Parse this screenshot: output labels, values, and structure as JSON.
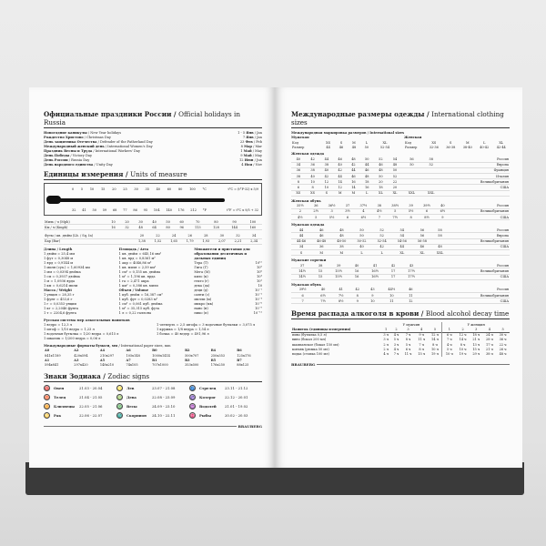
{
  "holidays": {
    "title": "Официальные праздники России",
    "title_en": "Official holidays in Russia",
    "items": [
      [
        "Новогодние каникулы",
        "New Year holidays",
        "1 - 5",
        "Янв",
        "Jan"
      ],
      [
        "Рождество Христово",
        "Christmas Day",
        "7",
        "Янв",
        "Jan"
      ],
      [
        "День защитника Отечества",
        "Defender of the Fatherland Day",
        "23",
        "Фев",
        "Feb"
      ],
      [
        "Международный женский день",
        "International Women's Day",
        "8",
        "Мар",
        "Mar"
      ],
      [
        "Праздник Весны и Труда",
        "International Workers' Day",
        "1",
        "Май",
        "May"
      ],
      [
        "День Победы",
        "Victory Day",
        "9",
        "Май",
        "May"
      ],
      [
        "День России",
        "Russia Day",
        "12",
        "Июн",
        "Jun"
      ],
      [
        "День народного единства",
        "Unity Day",
        "4",
        "Ноя",
        "Nov"
      ]
    ]
  },
  "units": {
    "title": "Единицы измерения",
    "title_en": "Units of measure",
    "celsius": [
      "0",
      "5",
      "10",
      "15",
      "20",
      "25",
      "30",
      "35",
      "40",
      "60",
      "80",
      "100"
    ],
    "fahrenheit": [
      "32",
      "41",
      "50",
      "59",
      "68",
      "77",
      "86",
      "95",
      "104",
      "140",
      "176",
      "212"
    ],
    "c_label": "°C",
    "f_label": "°F",
    "c_formula": "t°C = (t°F-32) x 5/9",
    "f_formula": "t°F = t°C x 9/5 + 32",
    "speed": [
      [
        "Миль / ч (Mph)",
        "10",
        "20",
        "30",
        "40",
        "50",
        "60",
        "70",
        "80",
        "90",
        "100"
      ],
      [
        "Км / ч (Kmph)",
        "16",
        "32",
        "48",
        "64",
        "80",
        "96",
        "113",
        "128",
        "144",
        "160"
      ]
    ],
    "pressure": [
      [
        "Футы / кв. дюйм (Lb. / Sq. In)",
        "20",
        "22",
        "24",
        "26",
        "28",
        "30",
        "32",
        "34"
      ],
      [
        "Бар (Bar)",
        "1,38",
        "1,52",
        "1,65",
        "1,79",
        "1,93",
        "2,07",
        "2,21",
        "2,34"
      ]
    ],
    "length": {
      "title": "Длина / Length",
      "items": [
        "1 дюйм = 25,4 мм",
        "1 фут = 0,3048 м",
        "1 ярд = 0,9144 м",
        "1 миля (сух.) = 1,60934 км",
        "1 мм = 0,0394 дюйма",
        "1 см = 0,3937 дюйма",
        "1 м = 1,0936 ярда",
        "1 км = 0,6214 мили"
      ]
    },
    "mass": {
      "title": "Масса / Weight",
      "items": [
        "1 унция = 28,35 г",
        "1 фунт = 453,6 г",
        "1 г = 0,0353 унции",
        "1 кг = 2,2046 фунта",
        "1 т = 2204,6 фунта"
      ]
    },
    "area": {
      "title": "Площадь / Area",
      "items": [
        "1 кв. дюйм = 645,16 мм²",
        "1 кв. ярд = 0,8361 м²",
        "1 акр = 4046,86 м²",
        "1 кв. миля = 2,59 км²",
        "1 см² = 0,155 кв. дюйма",
        "1 м² = 1,196 кв. ярда",
        "1 га = 2,471 акра",
        "1 км² = 0,386 кв. мили"
      ]
    },
    "volume": {
      "title": "Объем / Volume",
      "items": [
        "1 куб. дюйм = 16,387 см³",
        "1 куб. фут = 0,0283 м³",
        "1 см³ = 0,061 куб. дюйма",
        "1 м³ = 35,315 куб. фута",
        "1 л = 0,22 галлона"
      ]
    },
    "prefixes": {
      "title": "Множители и приставки для образования десятичных и дольных единиц",
      "items": [
        [
          "Тера (Т)",
          "10¹²"
        ],
        [
          "Гига (Г)",
          "10⁹"
        ],
        [
          "Мега (М)",
          "10⁶"
        ],
        [
          "кило (к)",
          "10³"
        ],
        [
          "гекто (г)",
          "10²"
        ],
        [
          "дека (да)",
          "10"
        ],
        [
          "деци (д)",
          "10⁻¹"
        ],
        [
          "санти (с)",
          "10⁻²"
        ],
        [
          "милли (м)",
          "10⁻³"
        ],
        [
          "микро (мк)",
          "10⁻⁶"
        ],
        [
          "нано (н)",
          "10⁻⁹"
        ],
        [
          "пико (п)",
          "10⁻¹²"
        ]
      ]
    }
  },
  "russian_alcohol": {
    "title": "Русская система мер алкогольных напитков",
    "left": [
      "1 ведро = 12,3 л",
      "1 штоф = 1/10 ведра = 1,23 л",
      "1 водочная бутылка = 1/20 ведра = 0,615 л",
      "1 шкалик = 1/200 ведра = 0,06 л"
    ],
    "right": [
      "1 четверть = 2,5 штофа = 3 водочные бутылки = 3,075 л",
      "1 кружка = 1/8 ведра = 1,54 л",
      "1 бочка = 40 ведер = 491,96 л"
    ]
  },
  "paper": {
    "title": "Международные форматы бумаги, мм",
    "title_en": "International paper sizes, mm",
    "rows": [
      [
        [
          "A0",
          "841x1189"
        ],
        [
          "A2",
          "420x594"
        ],
        [
          "A4",
          "210x297"
        ],
        [
          "A6",
          "105x148"
        ],
        [
          "B0",
          "1000x1414"
        ],
        [
          "B2",
          "500x707"
        ],
        [
          "B4",
          "250x353"
        ],
        [
          "B6",
          "125x176"
        ]
      ],
      [
        [
          "A1",
          "594x841"
        ],
        [
          "A3",
          "297x420"
        ],
        [
          "A5",
          "148x210"
        ],
        [
          "A7",
          "74x105"
        ],
        [
          "B1",
          "707x1000"
        ],
        [
          "B3",
          "353x500"
        ],
        [
          "B5",
          "176x250"
        ],
        [
          "B7",
          "88x125"
        ]
      ]
    ]
  },
  "zodiac": {
    "title": "Знаки Зодиака",
    "title_en": "Zodiac signs",
    "items": [
      [
        "Овен",
        "21.03 - 20.04",
        "♈"
      ],
      [
        "Лев",
        "23.07 - 21.08",
        "♌"
      ],
      [
        "Стрелец",
        "23.11 - 21.12",
        "♐"
      ],
      [
        "Телец",
        "21.04 - 21.05",
        "♉"
      ],
      [
        "Дева",
        "22.08 - 23.09",
        "♍"
      ],
      [
        "Козерог",
        "22.12 - 20.01",
        "♑"
      ],
      [
        "Близнецы",
        "22.05 - 21.06",
        "♊"
      ],
      [
        "Весы",
        "24.09 - 23.10",
        "♎"
      ],
      [
        "Водолей",
        "21.01 - 19.02",
        "♒"
      ],
      [
        "Рак",
        "22.06 - 22.07",
        "♋"
      ],
      [
        "Скорпион",
        "24.10 - 22.11",
        "♏"
      ],
      [
        "Рыбы",
        "20.02 - 20.03",
        "♓"
      ]
    ]
  },
  "brand": "BRAUBERG",
  "clothing": {
    "title": "Международные размеры одежды",
    "title_en": "International clothing sizes",
    "marking": "Международная маркировка размеров / International sizes",
    "men_label": "Мужская",
    "women_label": "Женская",
    "men": [
      [
        "Код",
        "XS",
        "S",
        "M",
        "L",
        "XL"
      ],
      [
        "Размер",
        "44",
        "46",
        "48",
        "50",
        "52-54"
      ]
    ],
    "women": [
      [
        "Код",
        "XS",
        "S",
        "M",
        "L",
        "XL"
      ],
      [
        "Размер",
        "32-36",
        "36-38",
        "38-40",
        "40-42",
        "42-44"
      ]
    ],
    "sections": [
      {
        "title": "Женская одежда",
        "rows": [
          [
            "40",
            "42",
            "44",
            "46",
            "48",
            "50",
            "52",
            "54",
            "56",
            "58",
            "Россия"
          ],
          [
            "34",
            "36",
            "38",
            "40",
            "42",
            "44",
            "46",
            "48",
            "50",
            "52",
            "Европа"
          ],
          [
            "36",
            "38",
            "40",
            "42",
            "44",
            "46",
            "48",
            "50",
            "",
            "",
            "Франция"
          ],
          [
            "38",
            "40",
            "42",
            "44",
            "46",
            "48",
            "50",
            "52",
            "",
            "",
            "Италия"
          ],
          [
            "8",
            "10",
            "12",
            "14",
            "16",
            "18",
            "20",
            "22",
            "",
            "",
            "Великобритания"
          ],
          [
            "6",
            "8",
            "10",
            "12",
            "14",
            "16",
            "18",
            "20",
            "",
            "",
            "США"
          ],
          [
            "XS",
            "XS",
            "S",
            "M",
            "M",
            "L",
            "XL",
            "XL",
            "XXL",
            "XXL",
            ""
          ]
        ]
      },
      {
        "title": "Женская обувь",
        "rows": [
          [
            "35½",
            "36",
            "36½",
            "37",
            "37½",
            "38",
            "38½",
            "39",
            "39½",
            "40",
            "Россия"
          ],
          [
            "2",
            "2½",
            "3",
            "3½",
            "4",
            "4½",
            "5",
            "5½",
            "6",
            "6½",
            "Великобритания"
          ],
          [
            "4½",
            "5",
            "5½",
            "6",
            "6½",
            "7",
            "7½",
            "8",
            "8½",
            "9",
            "США"
          ]
        ]
      },
      {
        "title": "Мужская одежда",
        "rows": [
          [
            "44",
            "46",
            "48",
            "50",
            "52",
            "54",
            "56",
            "58",
            "",
            "",
            "Россия"
          ],
          [
            "44",
            "46",
            "48",
            "50",
            "52",
            "54",
            "56",
            "58",
            "",
            "",
            "Европа"
          ],
          [
            "44-46",
            "46-48",
            "48-50",
            "50-52",
            "52-54",
            "54-56",
            "56-58",
            "",
            "",
            "",
            "Великобритания"
          ],
          [
            "34",
            "36",
            "38",
            "40",
            "42",
            "44",
            "46",
            "48",
            "",
            "",
            "США"
          ],
          [
            "S",
            "M",
            "M",
            "L",
            "L",
            "XL",
            "XL",
            "XXL",
            "",
            "",
            ""
          ]
        ]
      },
      {
        "title": "Мужские сорочки",
        "rows": [
          [
            "37",
            "38",
            "39",
            "40",
            "41",
            "42",
            "43",
            "",
            "",
            "",
            "Россия"
          ],
          [
            "14½",
            "15",
            "15½",
            "16",
            "16½",
            "17",
            "17½",
            "",
            "",
            "",
            "Великобритания"
          ],
          [
            "14½",
            "15",
            "15½",
            "16",
            "16½",
            "17",
            "17½",
            "",
            "",
            "",
            "США"
          ]
        ]
      },
      {
        "title": "Мужская обувь",
        "rows": [
          [
            "39½",
            "40",
            "41",
            "42",
            "43",
            "44½",
            "46",
            "",
            "",
            "",
            "Россия"
          ],
          [
            "6",
            "6½",
            "7½",
            "8",
            "9",
            "10",
            "11",
            "",
            "",
            "",
            "Великобритания"
          ],
          [
            "7",
            "7½",
            "8½",
            "9",
            "10",
            "11",
            "12",
            "",
            "",
            "",
            "США"
          ]
        ]
      }
    ]
  },
  "alcohol": {
    "title": "Время распада алкоголя в крови",
    "title_en": "Blood alcohol decay time",
    "men": "У мужчин",
    "women": "У женщин",
    "drink_header": "Напиток (единицы измерения)",
    "cols": [
      "1",
      "2",
      "3",
      "4",
      "5",
      "1",
      "2",
      "3",
      "4",
      "5"
    ],
    "rows": [
      [
        "пиво (бутылка 0,5 л)",
        "3 ч",
        "4 ч",
        "7 ч",
        "9 ч",
        "12 ч",
        "6 ч",
        "12 ч",
        "18 ч",
        "24 ч",
        "30 ч"
      ],
      [
        "вино (бокал 200 мл)",
        "3 ч",
        "5 ч",
        "8 ч",
        "11 ч",
        "14 ч",
        "7 ч",
        "14 ч",
        "21 ч",
        "28 ч",
        "36 ч"
      ],
      [
        "шампанское (бокал 150 мл)",
        "2 ч",
        "3 ч",
        "5 ч",
        "7 ч",
        "8 ч",
        "4 ч",
        "8 ч",
        "13 ч",
        "17 ч",
        "22 ч"
      ],
      [
        "коньяк (рюмка 50 мл)",
        "2 ч",
        "4 ч",
        "6 ч",
        "8 ч",
        "10 ч",
        "5 ч",
        "10 ч",
        "15 ч",
        "21 ч",
        "26 ч"
      ],
      [
        "водка (стопка 100 мл)",
        "4 ч",
        "7 ч",
        "11 ч",
        "15 ч",
        "19 ч",
        "10 ч",
        "19 ч",
        "29 ч",
        "38 ч",
        "48 ч"
      ]
    ]
  }
}
